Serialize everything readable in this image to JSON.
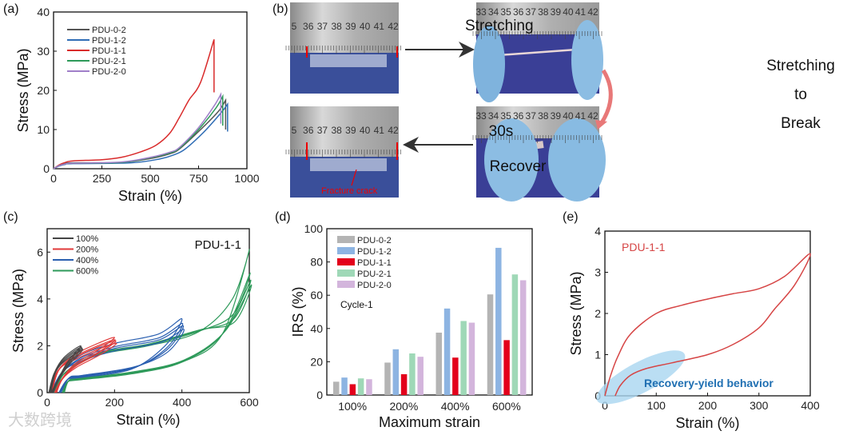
{
  "panel_labels": [
    "(a)",
    "(b)",
    "(c)",
    "(d)",
    "(e)"
  ],
  "watermark": "大数跨境",
  "colors": {
    "gray": "#555555",
    "blue": "#2f6db5",
    "red": "#d92b2b",
    "green": "#2e9a5a",
    "purple": "#a07fc9",
    "bar_gray": "#b4b4b4",
    "bar_blue": "#8db4e2",
    "bar_red": "#e3001b",
    "bar_green": "#9fd8b7",
    "bar_purple": "#d3b5dc",
    "highlight": "#a9d6f0",
    "annot_blue": "#1f6fb2"
  },
  "photos": {
    "ruler_labels_left": [
      "5",
      "36",
      "37",
      "38",
      "39",
      "40",
      "41",
      "42"
    ],
    "ruler_labels_right": [
      "33",
      "34",
      "35",
      "36",
      "37",
      "38",
      "39",
      "40",
      "41",
      "42"
    ],
    "arrow_top": "Stretching",
    "arrow_right_lines": [
      "Stretching",
      "to",
      "Break"
    ],
    "arrow_bottom_top": "30s",
    "arrow_bottom_bottom": "Recover",
    "fracture_label": "Fracture crack"
  },
  "chart_data": [
    {
      "id": "a",
      "type": "line",
      "title": "",
      "xlabel": "Strain (%)",
      "ylabel": "Stress (MPa)",
      "xlim": [
        0,
        1000
      ],
      "ylim": [
        0,
        40
      ],
      "xticks": [
        "0",
        "250",
        "500",
        "750",
        "1000"
      ],
      "yticks": [
        "0",
        "10",
        "20",
        "30",
        "40"
      ],
      "legend": "top-left",
      "series": [
        {
          "name": "PDU-0-2",
          "color": "#555555",
          "points": [
            [
              0,
              0
            ],
            [
              30,
              0.8
            ],
            [
              60,
              1.3
            ],
            [
              100,
              1.5
            ],
            [
              350,
              1.6
            ],
            [
              500,
              2.6
            ],
            [
              600,
              3.8
            ],
            [
              650,
              5
            ],
            [
              750,
              9.5
            ],
            [
              850,
              14.5
            ],
            [
              890,
              17.5
            ],
            [
              890,
              10
            ]
          ]
        },
        {
          "name": "PDU-1-2",
          "color": "#2f6db5",
          "points": [
            [
              0,
              0
            ],
            [
              30,
              0.7
            ],
            [
              60,
              1.1
            ],
            [
              100,
              1.3
            ],
            [
              400,
              1.5
            ],
            [
              550,
              2.5
            ],
            [
              620,
              3.5
            ],
            [
              680,
              5
            ],
            [
              780,
              9.5
            ],
            [
              870,
              14.5
            ],
            [
              900,
              16.5
            ],
            [
              900,
              9.5
            ]
          ]
        },
        {
          "name": "PDU-1-1",
          "color": "#d92b2b",
          "points": [
            [
              0,
              0
            ],
            [
              30,
              1
            ],
            [
              60,
              1.6
            ],
            [
              100,
              2
            ],
            [
              250,
              2.3
            ],
            [
              350,
              2.9
            ],
            [
              450,
              4.3
            ],
            [
              530,
              6
            ],
            [
              600,
              9
            ],
            [
              650,
              13
            ],
            [
              700,
              17.5
            ],
            [
              760,
              22
            ],
            [
              830,
              33
            ],
            [
              830,
              19.5
            ]
          ]
        },
        {
          "name": "PDU-2-1",
          "color": "#2e9a5a",
          "points": [
            [
              0,
              0
            ],
            [
              30,
              0.8
            ],
            [
              60,
              1.2
            ],
            [
              100,
              1.4
            ],
            [
              350,
              1.6
            ],
            [
              500,
              2.8
            ],
            [
              600,
              4
            ],
            [
              650,
              5.2
            ],
            [
              750,
              10
            ],
            [
              840,
              15.5
            ],
            [
              875,
              18.5
            ],
            [
              875,
              11
            ]
          ]
        },
        {
          "name": "PDU-2-0",
          "color": "#a07fc9",
          "points": [
            [
              0,
              0
            ],
            [
              30,
              0.8
            ],
            [
              60,
              1.2
            ],
            [
              100,
              1.4
            ],
            [
              350,
              1.7
            ],
            [
              500,
              2.9
            ],
            [
              600,
              4.2
            ],
            [
              650,
              5.4
            ],
            [
              750,
              10.5
            ],
            [
              830,
              16
            ],
            [
              865,
              19
            ],
            [
              865,
              11.5
            ]
          ]
        }
      ]
    },
    {
      "id": "c",
      "type": "line",
      "title": "PDU-1-1",
      "xlabel": "Strain (%)",
      "ylabel": "Stress (MPa)",
      "xlim": [
        0,
        600
      ],
      "ylim": [
        0,
        7
      ],
      "xticks": [
        "0",
        "200",
        "400",
        "600"
      ],
      "yticks": [
        "0",
        "2",
        "4",
        "6"
      ],
      "legend": "top-left",
      "series": [
        {
          "name": "100%",
          "color": "#444444",
          "load": [
            [
              5,
              0
            ],
            [
              20,
              0.8
            ],
            [
              50,
              1.5
            ],
            [
              100,
              2
            ]
          ],
          "unload": [
            [
              100,
              2
            ],
            [
              60,
              1.3
            ],
            [
              30,
              0.5
            ],
            [
              12,
              0
            ]
          ],
          "cycle_peaks": [
            2.0,
            1.95,
            1.9,
            1.85
          ]
        },
        {
          "name": "200%",
          "color": "#e03a3a",
          "load": [
            [
              8,
              0
            ],
            [
              30,
              0.9
            ],
            [
              80,
              1.6
            ],
            [
              150,
              2.1
            ],
            [
              200,
              2.35
            ]
          ],
          "unload": [
            [
              200,
              2.35
            ],
            [
              150,
              1.8
            ],
            [
              80,
              1.2
            ],
            [
              40,
              0.5
            ],
            [
              22,
              0
            ]
          ],
          "cycle_peaks": [
            2.35,
            2.25,
            2.2,
            2.1
          ]
        },
        {
          "name": "400%",
          "color": "#2a5fb0",
          "load": [
            [
              12,
              0
            ],
            [
              40,
              0.8
            ],
            [
              100,
              1.6
            ],
            [
              200,
              2.1
            ],
            [
              330,
              2.5
            ],
            [
              400,
              3.15
            ]
          ],
          "unload": [
            [
              400,
              3.15
            ],
            [
              350,
              2
            ],
            [
              250,
              1.0
            ],
            [
              100,
              0.65
            ],
            [
              60,
              0.55
            ],
            [
              35,
              0
            ]
          ],
          "cycle_peaks": [
            3.15,
            2.95,
            2.85,
            2.7
          ]
        },
        {
          "name": "600%",
          "color": "#2e9a5a",
          "load": [
            [
              18,
              0
            ],
            [
              50,
              0.8
            ],
            [
              150,
              1.6
            ],
            [
              300,
              2
            ],
            [
              450,
              2.6
            ],
            [
              550,
              4
            ],
            [
              600,
              6.1
            ]
          ],
          "unload": [
            [
              600,
              6.1
            ],
            [
              520,
              2.5
            ],
            [
              400,
              1.3
            ],
            [
              250,
              0.8
            ],
            [
              100,
              0.55
            ],
            [
              60,
              0.45
            ],
            [
              45,
              0
            ]
          ],
          "cycle_peaks": [
            6.1,
            5.1,
            4.8,
            4.6
          ]
        }
      ]
    },
    {
      "id": "d",
      "type": "bar",
      "title": "",
      "annotation": "Cycle-1",
      "xlabel": "Maximum strain",
      "ylabel": "IRS (%)",
      "ylim": [
        0,
        100
      ],
      "yticks": [
        "0",
        "20",
        "40",
        "60",
        "80",
        "100"
      ],
      "categories": [
        "100%",
        "200%",
        "400%",
        "600%"
      ],
      "legend": "top-left",
      "series": [
        {
          "name": "PDU-0-2",
          "color": "#b4b4b4",
          "values": [
            8,
            19.5,
            37.5,
            60.5
          ]
        },
        {
          "name": "PDU-1-2",
          "color": "#8db4e2",
          "values": [
            10.5,
            27.5,
            52,
            88.5
          ]
        },
        {
          "name": "PDU-1-1",
          "color": "#e3001b",
          "values": [
            6.5,
            12.5,
            22.5,
            33
          ]
        },
        {
          "name": "PDU-2-1",
          "color": "#9fd8b7",
          "values": [
            10,
            25,
            44.5,
            72.5
          ]
        },
        {
          "name": "PDU-2-0",
          "color": "#d3b5dc",
          "values": [
            9.5,
            23,
            43.5,
            69
          ]
        }
      ]
    },
    {
      "id": "e",
      "type": "line",
      "title": "PDU-1-1",
      "annotation": "Recovery-yield behavior",
      "xlabel": "Strain (%)",
      "ylabel": "Stress (MPa)",
      "xlim": [
        0,
        400
      ],
      "ylim": [
        0,
        4
      ],
      "xticks": [
        "0",
        "100",
        "200",
        "300",
        "400"
      ],
      "yticks": [
        "0",
        "1",
        "2",
        "3",
        "4"
      ],
      "series": [
        {
          "name": "PDU-1-1",
          "color": "#d64545",
          "points": [
            [
              0,
              0
            ],
            [
              10,
              0.45
            ],
            [
              25,
              0.95
            ],
            [
              50,
              1.5
            ],
            [
              100,
              2
            ],
            [
              150,
              2.2
            ],
            [
              200,
              2.35
            ],
            [
              250,
              2.48
            ],
            [
              300,
              2.6
            ],
            [
              350,
              2.9
            ],
            [
              400,
              3.45
            ],
            [
              370,
              2.7
            ],
            [
              330,
              2.1
            ],
            [
              300,
              1.65
            ],
            [
              250,
              1.25
            ],
            [
              200,
              1.0
            ],
            [
              130,
              0.8
            ],
            [
              80,
              0.66
            ],
            [
              50,
              0.5
            ],
            [
              30,
              0.25
            ],
            [
              20,
              0
            ]
          ]
        }
      ]
    }
  ]
}
